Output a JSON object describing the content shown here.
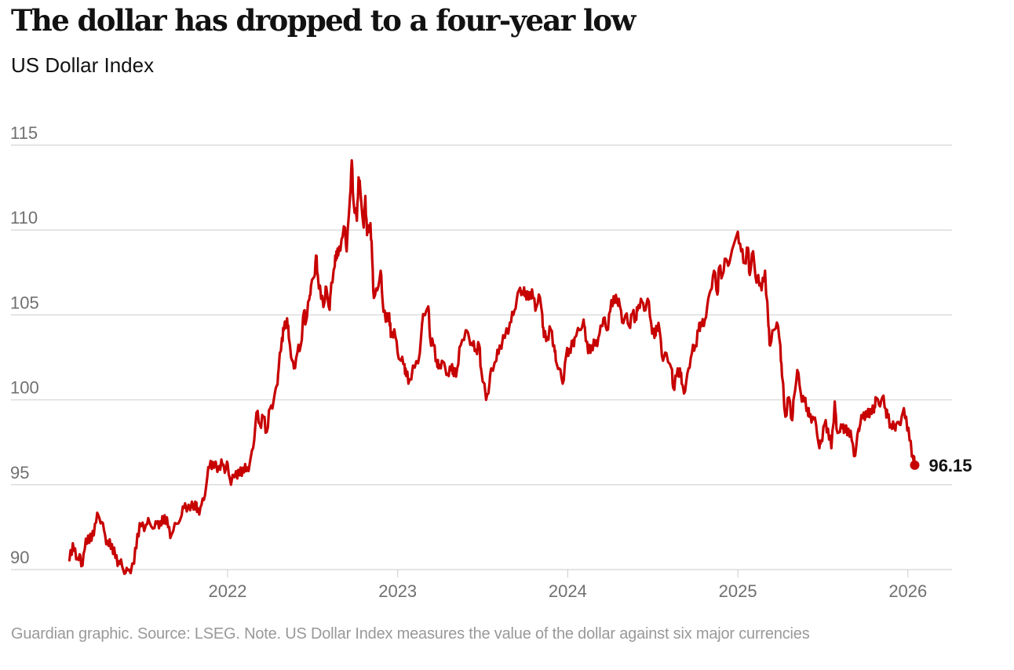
{
  "chart_data": {
    "type": "line",
    "title": "The dollar has dropped to a four-year low",
    "subtitle": "US Dollar Index",
    "xlabel": "",
    "ylabel": "",
    "ylim": [
      90,
      115
    ],
    "xlim": [
      2021.0,
      2026.26
    ],
    "grid": true,
    "y_ticks": [
      90,
      95,
      100,
      105,
      110,
      115
    ],
    "y_tick_labels": [
      "90",
      "95",
      "100",
      "105",
      "110",
      "115"
    ],
    "x_ticks": [
      2022,
      2023,
      2024,
      2025,
      2026
    ],
    "x_tick_labels": [
      "2022",
      "2023",
      "2024",
      "2025",
      "2026"
    ],
    "series": [
      {
        "name": "US Dollar Index",
        "color": "#c70000",
        "end_label": "96.15",
        "points": [
          [
            2021.07,
            90.55
          ],
          [
            2021.09,
            91.55
          ],
          [
            2021.11,
            90.6
          ],
          [
            2021.13,
            90.9
          ],
          [
            2021.14,
            90.2
          ],
          [
            2021.16,
            91.2
          ],
          [
            2021.18,
            92.0
          ],
          [
            2021.2,
            91.7
          ],
          [
            2021.22,
            92.7
          ],
          [
            2021.24,
            93.2
          ],
          [
            2021.26,
            92.8
          ],
          [
            2021.28,
            92.0
          ],
          [
            2021.3,
            91.4
          ],
          [
            2021.32,
            91.5
          ],
          [
            2021.34,
            90.7
          ],
          [
            2021.36,
            90.5
          ],
          [
            2021.38,
            90.2
          ],
          [
            2021.4,
            89.8
          ],
          [
            2021.42,
            90.0
          ],
          [
            2021.45,
            90.35
          ],
          [
            2021.47,
            92.1
          ],
          [
            2021.49,
            92.55
          ],
          [
            2021.52,
            92.65
          ],
          [
            2021.54,
            92.8
          ],
          [
            2021.57,
            92.45
          ],
          [
            2021.59,
            92.85
          ],
          [
            2021.61,
            92.6
          ],
          [
            2021.63,
            93.2
          ],
          [
            2021.65,
            92.5
          ],
          [
            2021.67,
            92.05
          ],
          [
            2021.7,
            92.7
          ],
          [
            2021.73,
            93.2
          ],
          [
            2021.75,
            93.9
          ],
          [
            2021.78,
            93.5
          ],
          [
            2021.81,
            94.0
          ],
          [
            2021.82,
            93.4
          ],
          [
            2021.84,
            93.65
          ],
          [
            2021.86,
            94.1
          ],
          [
            2021.88,
            95.4
          ],
          [
            2021.9,
            96.4
          ],
          [
            2021.92,
            96.0
          ],
          [
            2021.95,
            96.1
          ],
          [
            2021.97,
            96.15
          ],
          [
            2021.99,
            95.95
          ],
          [
            2022.0,
            96.25
          ],
          [
            2022.02,
            95.0
          ],
          [
            2022.05,
            95.8
          ],
          [
            2022.07,
            95.55
          ],
          [
            2022.09,
            96.0
          ],
          [
            2022.11,
            95.8
          ],
          [
            2022.13,
            96.25
          ],
          [
            2022.15,
            97.15
          ],
          [
            2022.17,
            99.25
          ],
          [
            2022.19,
            98.55
          ],
          [
            2022.21,
            99.0
          ],
          [
            2022.23,
            98.1
          ],
          [
            2022.25,
            99.5
          ],
          [
            2022.27,
            99.9
          ],
          [
            2022.29,
            100.85
          ],
          [
            2022.3,
            101.8
          ],
          [
            2022.32,
            103.65
          ],
          [
            2022.33,
            104.1
          ],
          [
            2022.35,
            104.8
          ],
          [
            2022.36,
            103.65
          ],
          [
            2022.38,
            102.3
          ],
          [
            2022.39,
            101.85
          ],
          [
            2022.41,
            102.75
          ],
          [
            2022.43,
            103.2
          ],
          [
            2022.45,
            105.25
          ],
          [
            2022.46,
            104.55
          ],
          [
            2022.48,
            105.9
          ],
          [
            2022.49,
            106.7
          ],
          [
            2022.51,
            107.25
          ],
          [
            2022.52,
            108.5
          ],
          [
            2022.53,
            107.35
          ],
          [
            2022.55,
            105.95
          ],
          [
            2022.57,
            105.75
          ],
          [
            2022.58,
            106.65
          ],
          [
            2022.6,
            105.3
          ],
          [
            2022.61,
            106.9
          ],
          [
            2022.63,
            107.85
          ],
          [
            2022.64,
            108.75
          ],
          [
            2022.65,
            108.5
          ],
          [
            2022.67,
            109.45
          ],
          [
            2022.69,
            110.15
          ],
          [
            2022.7,
            108.75
          ],
          [
            2022.72,
            112.0
          ],
          [
            2022.73,
            114.1
          ],
          [
            2022.74,
            111.7
          ],
          [
            2022.76,
            110.55
          ],
          [
            2022.77,
            113.1
          ],
          [
            2022.78,
            112.4
          ],
          [
            2022.8,
            110.15
          ],
          [
            2022.81,
            112.0
          ],
          [
            2022.82,
            109.7
          ],
          [
            2022.84,
            110.4
          ],
          [
            2022.85,
            108.3
          ],
          [
            2022.86,
            106.0
          ],
          [
            2022.88,
            106.45
          ],
          [
            2022.9,
            107.6
          ],
          [
            2022.91,
            106.0
          ],
          [
            2022.93,
            104.6
          ],
          [
            2022.95,
            105.1
          ],
          [
            2022.96,
            103.7
          ],
          [
            2022.98,
            104.15
          ],
          [
            2023.0,
            102.75
          ],
          [
            2023.02,
            102.3
          ],
          [
            2023.04,
            102.1
          ],
          [
            2023.05,
            101.4
          ],
          [
            2023.07,
            101.2
          ],
          [
            2023.1,
            101.9
          ],
          [
            2023.13,
            102.75
          ],
          [
            2023.15,
            105.05
          ],
          [
            2023.18,
            105.5
          ],
          [
            2023.19,
            103.7
          ],
          [
            2023.21,
            103.2
          ],
          [
            2023.23,
            102.3
          ],
          [
            2023.24,
            101.85
          ],
          [
            2023.26,
            102.3
          ],
          [
            2023.28,
            101.85
          ],
          [
            2023.3,
            101.4
          ],
          [
            2023.32,
            102.1
          ],
          [
            2023.33,
            101.4
          ],
          [
            2023.35,
            101.85
          ],
          [
            2023.37,
            103.2
          ],
          [
            2023.4,
            104.1
          ],
          [
            2023.42,
            103.65
          ],
          [
            2023.44,
            103.2
          ],
          [
            2023.46,
            102.95
          ],
          [
            2023.48,
            103.2
          ],
          [
            2023.49,
            101.85
          ],
          [
            2023.52,
            100.0
          ],
          [
            2023.54,
            100.95
          ],
          [
            2023.55,
            101.85
          ],
          [
            2023.58,
            102.3
          ],
          [
            2023.6,
            103.2
          ],
          [
            2023.63,
            103.65
          ],
          [
            2023.66,
            104.55
          ],
          [
            2023.68,
            105.0
          ],
          [
            2023.7,
            105.9
          ],
          [
            2023.72,
            106.6
          ],
          [
            2023.74,
            106.2
          ],
          [
            2023.75,
            106.4
          ],
          [
            2023.77,
            105.9
          ],
          [
            2023.79,
            106.5
          ],
          [
            2023.81,
            105.25
          ],
          [
            2023.83,
            106.2
          ],
          [
            2023.85,
            105.05
          ],
          [
            2023.86,
            103.7
          ],
          [
            2023.88,
            103.7
          ],
          [
            2023.9,
            104.15
          ],
          [
            2023.92,
            103.2
          ],
          [
            2023.93,
            102.3
          ],
          [
            2023.95,
            101.85
          ],
          [
            2023.97,
            100.95
          ],
          [
            2023.99,
            102.55
          ],
          [
            2024.01,
            103.0
          ],
          [
            2024.03,
            103.2
          ],
          [
            2024.04,
            103.65
          ],
          [
            2024.07,
            104.1
          ],
          [
            2024.09,
            104.55
          ],
          [
            2024.1,
            104.3
          ],
          [
            2024.12,
            102.75
          ],
          [
            2024.14,
            103.2
          ],
          [
            2024.16,
            103.2
          ],
          [
            2024.18,
            103.65
          ],
          [
            2024.2,
            104.35
          ],
          [
            2024.21,
            104.8
          ],
          [
            2024.23,
            104.1
          ],
          [
            2024.25,
            105.25
          ],
          [
            2024.27,
            106.1
          ],
          [
            2024.29,
            105.7
          ],
          [
            2024.3,
            105.95
          ],
          [
            2024.32,
            104.55
          ],
          [
            2024.34,
            105.0
          ],
          [
            2024.36,
            104.35
          ],
          [
            2024.38,
            105.05
          ],
          [
            2024.4,
            104.8
          ],
          [
            2024.41,
            105.25
          ],
          [
            2024.43,
            105.95
          ],
          [
            2024.45,
            105.25
          ],
          [
            2024.47,
            105.95
          ],
          [
            2024.49,
            104.55
          ],
          [
            2024.51,
            103.65
          ],
          [
            2024.52,
            104.35
          ],
          [
            2024.54,
            104.1
          ],
          [
            2024.56,
            102.3
          ],
          [
            2024.58,
            102.75
          ],
          [
            2024.61,
            101.85
          ],
          [
            2024.62,
            100.7
          ],
          [
            2024.64,
            101.4
          ],
          [
            2024.66,
            101.85
          ],
          [
            2024.67,
            100.95
          ],
          [
            2024.69,
            100.5
          ],
          [
            2024.71,
            101.85
          ],
          [
            2024.73,
            102.75
          ],
          [
            2024.75,
            103.2
          ],
          [
            2024.77,
            104.1
          ],
          [
            2024.78,
            104.55
          ],
          [
            2024.8,
            104.35
          ],
          [
            2024.82,
            105.5
          ],
          [
            2024.84,
            106.45
          ],
          [
            2024.86,
            107.6
          ],
          [
            2024.88,
            106.2
          ],
          [
            2024.89,
            107.8
          ],
          [
            2024.91,
            107.35
          ],
          [
            2024.93,
            108.3
          ],
          [
            2024.95,
            108.05
          ],
          [
            2025.0,
            109.9
          ],
          [
            2025.02,
            108.75
          ],
          [
            2025.04,
            108.05
          ],
          [
            2025.06,
            108.95
          ],
          [
            2025.07,
            107.35
          ],
          [
            2025.09,
            108.75
          ],
          [
            2025.11,
            106.9
          ],
          [
            2025.12,
            107.35
          ],
          [
            2025.14,
            106.45
          ],
          [
            2025.16,
            107.6
          ],
          [
            2025.18,
            104.35
          ],
          [
            2025.19,
            103.2
          ],
          [
            2025.21,
            104.1
          ],
          [
            2025.23,
            104.55
          ],
          [
            2025.25,
            103.2
          ],
          [
            2025.26,
            101.4
          ],
          [
            2025.28,
            99.0
          ],
          [
            2025.3,
            100.15
          ],
          [
            2025.32,
            98.8
          ],
          [
            2025.33,
            100.15
          ],
          [
            2025.35,
            101.75
          ],
          [
            2025.37,
            100.4
          ],
          [
            2025.39,
            99.9
          ],
          [
            2025.41,
            99.5
          ],
          [
            2025.42,
            99.0
          ],
          [
            2025.44,
            99.0
          ],
          [
            2025.46,
            98.55
          ],
          [
            2025.48,
            97.15
          ],
          [
            2025.49,
            97.6
          ],
          [
            2025.51,
            98.55
          ],
          [
            2025.53,
            98.3
          ],
          [
            2025.55,
            97.15
          ],
          [
            2025.57,
            99.9
          ],
          [
            2025.58,
            98.3
          ],
          [
            2025.6,
            98.1
          ],
          [
            2025.62,
            98.55
          ],
          [
            2025.63,
            98.1
          ],
          [
            2025.65,
            98.3
          ],
          [
            2025.67,
            97.6
          ],
          [
            2025.69,
            96.7
          ],
          [
            2025.71,
            98.3
          ],
          [
            2025.72,
            98.55
          ],
          [
            2025.74,
            99.25
          ],
          [
            2025.76,
            99.0
          ],
          [
            2025.78,
            99.45
          ],
          [
            2025.8,
            99.25
          ],
          [
            2025.81,
            100.15
          ],
          [
            2025.83,
            99.7
          ],
          [
            2025.85,
            100.15
          ],
          [
            2025.87,
            99.45
          ],
          [
            2025.88,
            99.0
          ],
          [
            2025.9,
            98.55
          ],
          [
            2025.92,
            98.3
          ],
          [
            2025.93,
            98.55
          ],
          [
            2025.95,
            98.55
          ],
          [
            2025.97,
            99.25
          ],
          [
            2025.99,
            99.0
          ],
          [
            2026.01,
            97.6
          ],
          [
            2026.03,
            96.7
          ],
          [
            2026.04,
            96.15
          ]
        ]
      }
    ]
  },
  "footer": {
    "text": "Guardian graphic. Source: LSEG. Note. US Dollar Index measures the value of the dollar against six major currencies"
  }
}
